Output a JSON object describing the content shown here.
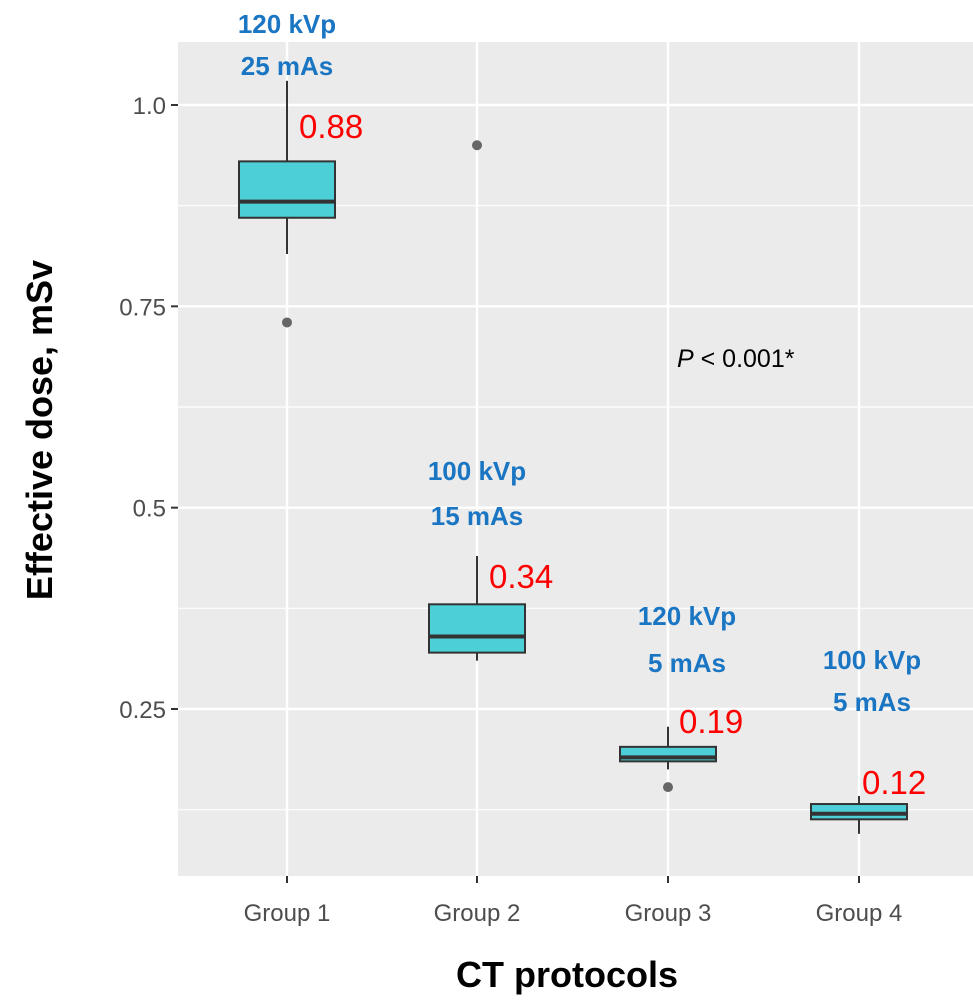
{
  "chart_data": {
    "type": "box",
    "xlabel": "CT protocols",
    "ylabel": "Effective dose, mSv",
    "categories": [
      "Group 1",
      "Group 2",
      "Group 3",
      "Group 4"
    ],
    "ylim": [
      0.08,
      1.06
    ],
    "yticks": [
      0.25,
      0.5,
      0.75,
      1.0
    ],
    "ytick_labels": [
      "0.25",
      "0.5",
      "0.75",
      "1.0"
    ],
    "grid": true,
    "boxes": [
      {
        "category": "Group 1",
        "whisker_low": 0.815,
        "q1": 0.86,
        "median": 0.88,
        "q3": 0.93,
        "whisker_high": 1.03,
        "outliers": [
          0.73
        ],
        "median_label": "0.88",
        "protocol_line1": "120 kVp",
        "protocol_line2": "25 mAs"
      },
      {
        "category": "Group 2",
        "whisker_low": 0.31,
        "q1": 0.32,
        "median": 0.34,
        "q3": 0.38,
        "whisker_high": 0.44,
        "outliers": [
          0.95
        ],
        "median_label": "0.34",
        "protocol_line1": "100 kVp",
        "protocol_line2": "15 mAs"
      },
      {
        "category": "Group 3",
        "whisker_low": 0.175,
        "q1": 0.185,
        "median": 0.19,
        "q3": 0.203,
        "whisker_high": 0.228,
        "outliers": [
          0.153
        ],
        "median_label": "0.19",
        "protocol_line1": "120 kVp",
        "protocol_line2": "5 mAs"
      },
      {
        "category": "Group 4",
        "whisker_low": 0.095,
        "q1": 0.113,
        "median": 0.12,
        "q3": 0.132,
        "whisker_high": 0.142,
        "outliers": [],
        "median_label": "0.12",
        "protocol_line1": "100 kVp",
        "protocol_line2": "5 mAs"
      }
    ],
    "p_value": {
      "symbol": "P",
      "text": " < 0.001*"
    },
    "colors": {
      "panel_background": "#ebebeb",
      "grid": "#ffffff",
      "box_fill": "#4ccfd6",
      "box_stroke": "#333333",
      "outlier": "#666666",
      "protocol_text": "#1a75c2",
      "median_text": "#ff0000"
    }
  }
}
